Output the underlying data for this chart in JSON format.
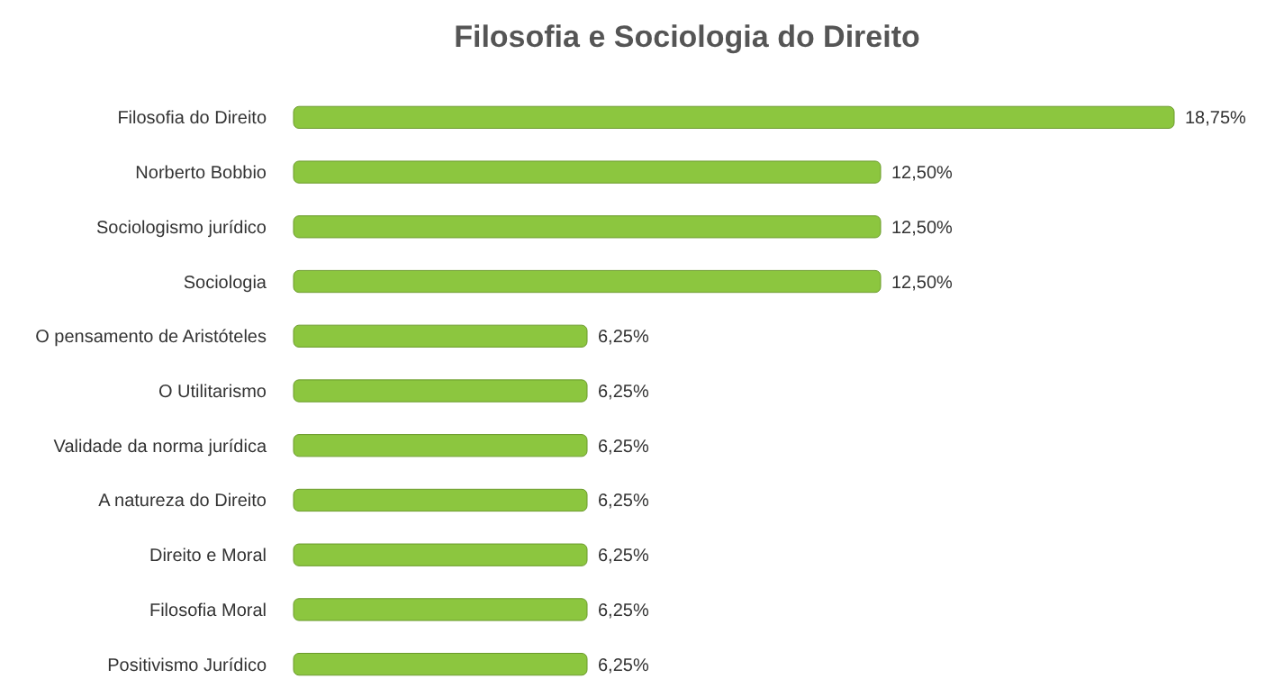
{
  "chart_data": {
    "type": "bar",
    "orientation": "horizontal",
    "title": "Filosofia e Sociologia do Direito",
    "categories": [
      "Filosofia do Direito",
      "Norberto Bobbio",
      "Sociologismo jurídico",
      "Sociologia",
      "O pensamento de Aristóteles",
      "O Utilitarismo",
      "Validade da norma jurídica",
      "A natureza do Direito",
      "Direito e Moral",
      "Filosofia Moral",
      "Positivismo Jurídico"
    ],
    "values": [
      18.75,
      12.5,
      12.5,
      12.5,
      6.25,
      6.25,
      6.25,
      6.25,
      6.25,
      6.25,
      6.25
    ],
    "value_labels": [
      "18,75%",
      "12,50%",
      "12,50%",
      "12,50%",
      "6,25%",
      "6,25%",
      "6,25%",
      "6,25%",
      "6,25%",
      "6,25%",
      "6,25%"
    ],
    "color": "#8cc63f",
    "xlim": [
      0,
      18.75
    ],
    "tick_labels": "y"
  }
}
